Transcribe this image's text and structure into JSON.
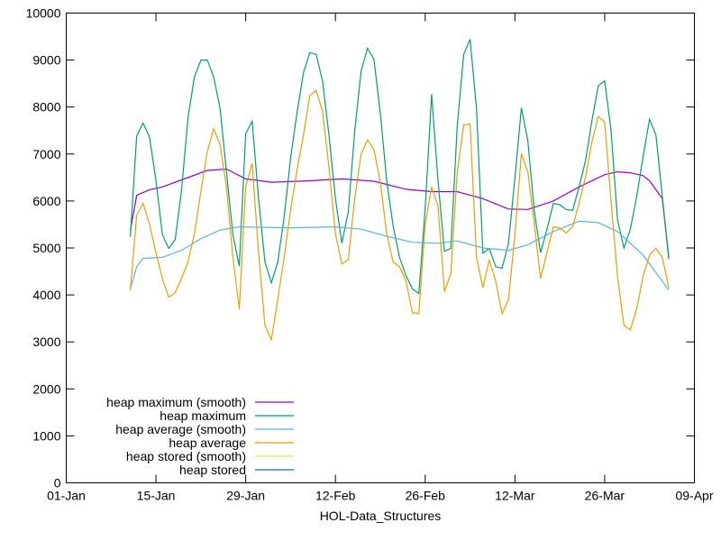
{
  "chart_data": {
    "type": "line",
    "title": "",
    "xlabel": "HOL-Data_Structures",
    "ylabel": "",
    "ylim": [
      0,
      10000
    ],
    "xlim": [
      "01-01",
      "04-09"
    ],
    "grid": false,
    "legend_position": "bottom-left",
    "y_ticks": [
      "0",
      "1000",
      "2000",
      "3000",
      "4000",
      "5000",
      "6000",
      "7000",
      "8000",
      "9000",
      "10000"
    ],
    "x_ticks": [
      {
        "date": "01-01",
        "label": "01-Jan"
      },
      {
        "date": "01-15",
        "label": "15-Jan"
      },
      {
        "date": "01-29",
        "label": "29-Jan"
      },
      {
        "date": "02-12",
        "label": "12-Feb"
      },
      {
        "date": "02-26",
        "label": "26-Feb"
      },
      {
        "date": "03-12",
        "label": "12-Mar"
      },
      {
        "date": "03-26",
        "label": "26-Mar"
      },
      {
        "date": "04-09",
        "label": "09-Apr"
      }
    ],
    "series": [
      {
        "name": "heap maximum (smooth)",
        "color": "#9400d3",
        "x": [
          "01-11",
          "01-12",
          "01-14",
          "01-16",
          "01-19",
          "01-23",
          "01-26",
          "01-29",
          "02-02",
          "02-08",
          "02-13",
          "02-18",
          "02-23",
          "02-27",
          "03-03",
          "03-07",
          "03-11",
          "03-14",
          "03-18",
          "03-22",
          "03-26",
          "03-28",
          "03-30",
          "04-01",
          "04-02",
          "04-03",
          "04-04",
          "04-05"
        ],
        "y": [
          5370,
          6120,
          6240,
          6300,
          6450,
          6650,
          6680,
          6470,
          6400,
          6430,
          6470,
          6420,
          6250,
          6200,
          6200,
          6050,
          5830,
          5820,
          6000,
          6300,
          6560,
          6620,
          6600,
          6540,
          6430,
          6240,
          6050,
          4800
        ]
      },
      {
        "name": "heap maximum",
        "color": "#009e73",
        "x": [
          "01-11",
          "01-12",
          "01-13",
          "01-14",
          "01-15",
          "01-16",
          "01-17",
          "01-18",
          "01-19",
          "01-20",
          "01-21",
          "01-22",
          "01-23",
          "01-24",
          "01-25",
          "01-26",
          "01-27",
          "01-28",
          "01-29",
          "01-30",
          "01-31",
          "02-01",
          "02-02",
          "02-03",
          "02-04",
          "02-05",
          "02-06",
          "02-07",
          "02-08",
          "02-09",
          "02-10",
          "02-11",
          "02-12",
          "02-13",
          "02-14",
          "02-15",
          "02-16",
          "02-17",
          "02-18",
          "02-19",
          "02-20",
          "02-21",
          "02-22",
          "02-23",
          "02-24",
          "02-25",
          "02-26",
          "02-27",
          "02-28",
          "03-01",
          "03-02",
          "03-03",
          "03-04",
          "03-05",
          "03-06",
          "03-07",
          "03-08",
          "03-09",
          "03-10",
          "03-11",
          "03-12",
          "03-13",
          "03-14",
          "03-15",
          "03-16",
          "03-17",
          "03-18",
          "03-19",
          "03-20",
          "03-21",
          "03-22",
          "03-23",
          "03-24",
          "03-25",
          "03-26",
          "03-27",
          "03-28",
          "03-29",
          "03-30",
          "03-31",
          "04-01",
          "04-02",
          "04-03",
          "04-04",
          "04-05"
        ],
        "y": [
          5240,
          7390,
          7660,
          7350,
          6430,
          5280,
          4990,
          5180,
          6240,
          7770,
          8640,
          9000,
          9000,
          8640,
          7970,
          6620,
          5280,
          4610,
          7430,
          7700,
          6050,
          4700,
          4260,
          4700,
          5660,
          6910,
          7870,
          8730,
          9160,
          9120,
          8540,
          7390,
          6050,
          5100,
          5760,
          7490,
          8770,
          9250,
          9020,
          7870,
          6430,
          5470,
          4800,
          4410,
          4130,
          4030,
          5850,
          8270,
          6430,
          4930,
          4990,
          7580,
          9120,
          9440,
          7970,
          4890,
          4990,
          4600,
          4570,
          5100,
          6500,
          7980,
          7300,
          5800,
          4900,
          5400,
          5950,
          5920,
          5820,
          5800,
          6300,
          6850,
          7700,
          8450,
          8560,
          7500,
          5600,
          5000,
          5400,
          6100,
          6950,
          7740,
          7400,
          6100,
          4760
        ]
      },
      {
        "name": "heap average (smooth)",
        "color": "#56b4e9",
        "x": [
          "01-11",
          "01-12",
          "01-13",
          "01-16",
          "01-19",
          "01-22",
          "01-25",
          "01-28",
          "02-05",
          "02-12",
          "02-16",
          "02-20",
          "02-24",
          "02-28",
          "03-03",
          "03-07",
          "03-11",
          "03-14",
          "03-18",
          "03-22",
          "03-25",
          "03-28",
          "04-01",
          "04-05"
        ],
        "y": [
          4130,
          4600,
          4780,
          4800,
          4950,
          5200,
          5380,
          5450,
          5430,
          5450,
          5400,
          5250,
          5120,
          5100,
          5150,
          5000,
          4950,
          5070,
          5350,
          5570,
          5540,
          5350,
          4850,
          4100
        ]
      },
      {
        "name": "heap average",
        "color": "#e69f00",
        "x": [
          "01-11",
          "01-12",
          "01-13",
          "01-14",
          "01-15",
          "01-16",
          "01-17",
          "01-18",
          "01-19",
          "01-20",
          "01-21",
          "01-22",
          "01-23",
          "01-24",
          "01-25",
          "01-26",
          "01-27",
          "01-28",
          "01-29",
          "01-30",
          "01-31",
          "02-01",
          "02-02",
          "02-03",
          "02-04",
          "02-05",
          "02-06",
          "02-07",
          "02-08",
          "02-09",
          "02-10",
          "02-11",
          "02-12",
          "02-13",
          "02-14",
          "02-15",
          "02-16",
          "02-17",
          "02-18",
          "02-19",
          "02-20",
          "02-21",
          "02-22",
          "02-23",
          "02-24",
          "02-25",
          "02-26",
          "02-27",
          "02-28",
          "03-01",
          "03-02",
          "03-03",
          "03-04",
          "03-05",
          "03-06",
          "03-07",
          "03-08",
          "03-09",
          "03-10",
          "03-11",
          "03-12",
          "03-13",
          "03-14",
          "03-15",
          "03-16",
          "03-17",
          "03-18",
          "03-19",
          "03-20",
          "03-21",
          "03-22",
          "03-23",
          "03-24",
          "03-25",
          "03-26",
          "03-27",
          "03-28",
          "03-29",
          "03-30",
          "03-31",
          "04-01",
          "04-02",
          "04-03",
          "04-04",
          "04-05"
        ],
        "y": [
          4100,
          5700,
          5950,
          5500,
          4890,
          4350,
          3950,
          4050,
          4350,
          4700,
          5300,
          6200,
          7050,
          7540,
          7200,
          6300,
          4800,
          3700,
          6300,
          6800,
          4900,
          3350,
          3050,
          3900,
          4800,
          5800,
          6650,
          7400,
          8250,
          8350,
          7900,
          6700,
          5300,
          4660,
          4750,
          6050,
          7000,
          7300,
          7100,
          6400,
          5300,
          4700,
          4600,
          4300,
          3620,
          3600,
          5500,
          6300,
          5900,
          4070,
          4450,
          6600,
          7620,
          7640,
          4800,
          4150,
          4740,
          4300,
          3600,
          3900,
          5300,
          7010,
          6620,
          5530,
          4350,
          4900,
          5450,
          5420,
          5320,
          5450,
          5950,
          6500,
          7250,
          7800,
          7680,
          6000,
          4400,
          3350,
          3260,
          3700,
          4400,
          4850,
          4990,
          4800,
          4150
        ]
      },
      {
        "name": "heap stored (smooth)",
        "color": "#f0e442",
        "x": [],
        "y": []
      },
      {
        "name": "heap stored",
        "color": "#0072b2",
        "x": [],
        "y": []
      }
    ]
  }
}
